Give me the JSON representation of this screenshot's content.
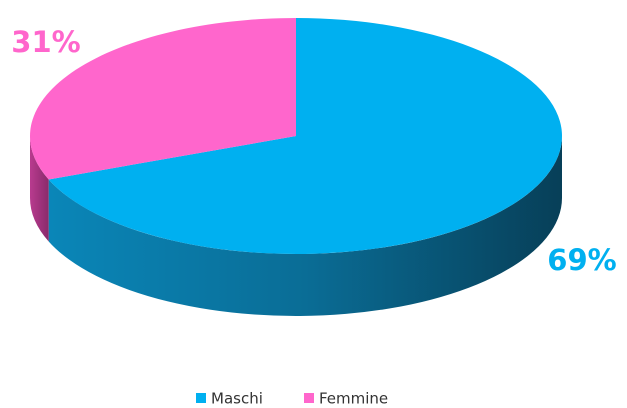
{
  "chart_data": {
    "type": "pie",
    "categories": [
      "Maschi",
      "Femmine"
    ],
    "values": [
      69,
      31
    ],
    "value_labels": [
      "69%",
      "31%"
    ],
    "colors": [
      "#00b0f0",
      "#ff66cc"
    ],
    "legend": "bottom"
  }
}
